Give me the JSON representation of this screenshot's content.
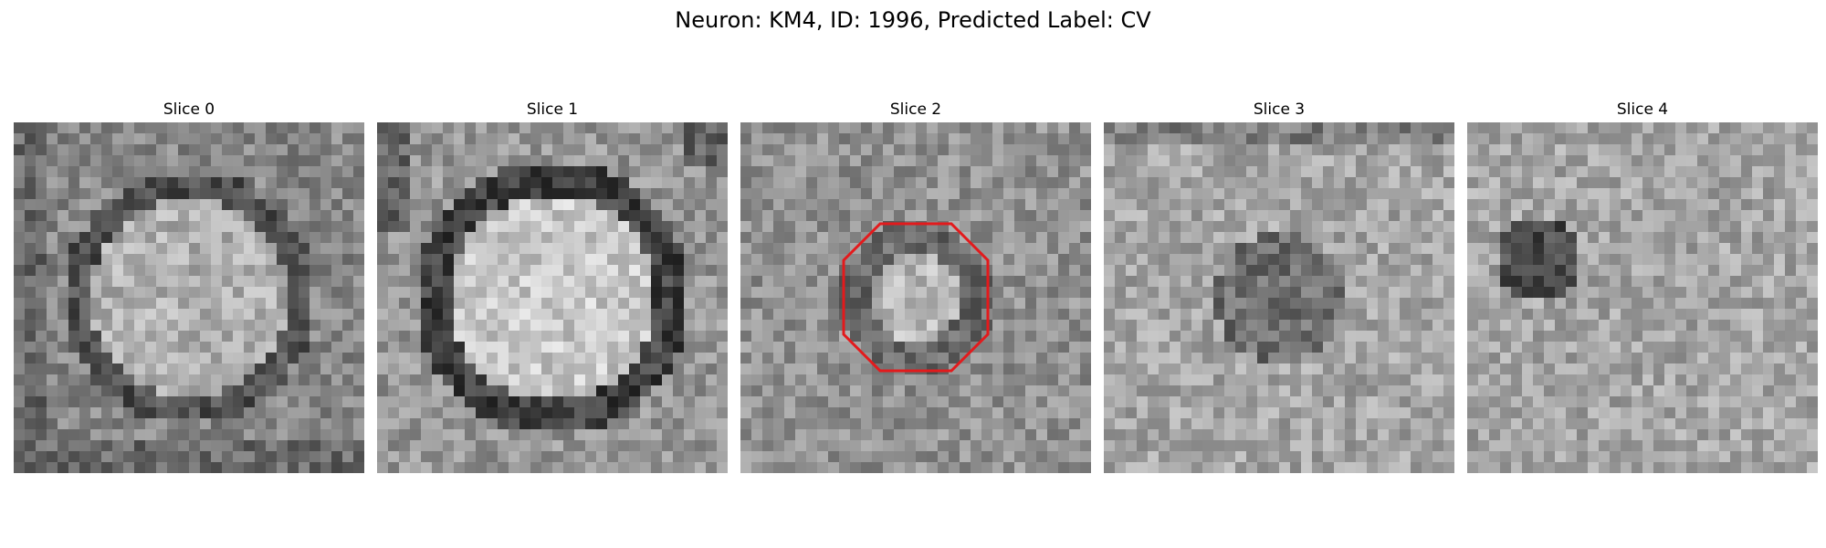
{
  "figure": {
    "title": "Neuron: KM4, ID: 1996, Predicted Label: CV"
  },
  "panels": [
    {
      "title": "Slice 0",
      "pattern": "ring",
      "seed": 11
    },
    {
      "title": "Slice 1",
      "pattern": "ring-bright",
      "seed": 23
    },
    {
      "title": "Slice 2",
      "pattern": "noise-spot",
      "seed": 37,
      "annotation": {
        "shape": "octagon",
        "color": "#e31a1c"
      }
    },
    {
      "title": "Slice 3",
      "pattern": "faint",
      "seed": 41
    },
    {
      "title": "Slice 4",
      "pattern": "noise-dark-left",
      "seed": 53
    }
  ],
  "colormap": "gray"
}
